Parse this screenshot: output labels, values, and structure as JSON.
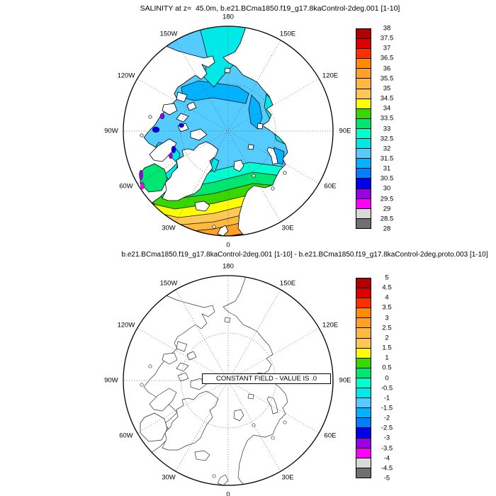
{
  "titles": {
    "top": "SALINITY at z=  45.0m, b.e21.BCma1850.f19_g17.8kaControl-2deg.001 [1-10]",
    "bottom": "b.e21.BCma1850.f19_g17.8kaControl-2deg.001 [1-10] - b.e21.BCma1850.f19_g17.8kaControl-2deg.proto.003 [1-10]"
  },
  "maps": {
    "lon_labels": [
      "180",
      "150W",
      "120W",
      "90W",
      "60W",
      "30W",
      "0",
      "30E",
      "60E",
      "90E",
      "120E",
      "150E"
    ],
    "constant_field_label": "CONSTANT FIELD - VALUE IS .0"
  },
  "colorbars": {
    "palette_top_to_bottom": [
      "#B00000",
      "#DC0000",
      "#FF3000",
      "#FF8C00",
      "#FFA028",
      "#FFB93C",
      "#FFC855",
      "#FFFF00",
      "#38D700",
      "#00E673",
      "#00FFD0",
      "#00E8E8",
      "#55CCFF",
      "#00B2FF",
      "#0080FF",
      "#0000E6",
      "#9900E6",
      "#FF00FF",
      "#D9D9D9",
      "#707070"
    ],
    "top_ticks": [
      "38",
      "37.5",
      "37",
      "36.5",
      "36",
      "35.5",
      "35",
      "34.5",
      "34",
      "33.5",
      "33",
      "32.5",
      "32",
      "31.5",
      "31",
      "30.5",
      "30",
      "29.5",
      "29",
      "28.5",
      "28"
    ],
    "bottom_ticks": [
      "5",
      "4.5",
      "4",
      "3.5",
      "3",
      "2.5",
      "2",
      "1.5",
      "1",
      "0.5",
      "0",
      "-0.5",
      "-1",
      "-1.5",
      "-2",
      "-2.5",
      "-3",
      "-3.5",
      "-4",
      "-4.5",
      "-5"
    ]
  },
  "chart_data": [
    {
      "type": "heatmap",
      "subtype": "filled-contour polar stereographic map",
      "title": "SALINITY at z=  45.0m, b.e21.BCma1850.f19_g17.8kaControl-2deg.001 [1-10]",
      "variable": "SALINITY",
      "depth": "45.0m",
      "projection": "north polar stereographic",
      "lon_gridlines_deg": [
        0,
        30,
        60,
        90,
        120,
        150,
        180,
        210,
        240,
        270,
        300,
        330
      ],
      "contour_levels": [
        28,
        28.5,
        29,
        29.5,
        30,
        30.5,
        31,
        31.5,
        32,
        32.5,
        33,
        33.5,
        34,
        34.5,
        35,
        35.5,
        36,
        36.5,
        37,
        37.5,
        38
      ],
      "colorbar_colors_low_to_high": [
        "#707070",
        "#D9D9D9",
        "#FF00FF",
        "#9900E6",
        "#0000E6",
        "#0080FF",
        "#00B2FF",
        "#55CCFF",
        "#00E8E8",
        "#00FFD0",
        "#00E673",
        "#38D700",
        "#FFFF00",
        "#FFC855",
        "#FFB93C",
        "#FFA028",
        "#FF8C00",
        "#FF3000",
        "#DC0000",
        "#B00000"
      ],
      "approx_region_values": {
        "central_arctic_basin": "31.5-32",
        "beaufort_and_east_siberian_lobes": "31-31.5",
        "chukchi_bering_and_shelf_seas": "32-32.5",
        "baffin_bay": "32-32.5 with local 29-30.5 minima",
        "canadian_archipelago_straits": "29-30.5",
        "hudson_bay": "33-33.5",
        "nordic_and_barents_seas": "33-34.5",
        "north_atlantic_rim": "35-36.5"
      },
      "legend_position": "right vertical labelbar"
    },
    {
      "type": "heatmap",
      "subtype": "contour polar stereographic map (difference)",
      "title": "b.e21.BCma1850.f19_g17.8kaControl-2deg.001 [1-10] - b.e21.BCma1850.f19_g17.8kaControl-2deg.proto.003 [1-10]",
      "projection": "north polar stereographic",
      "lon_gridlines_deg": [
        0,
        30,
        60,
        90,
        120,
        150,
        180,
        210,
        240,
        270,
        300,
        330
      ],
      "contour_levels": [
        -5,
        -4.5,
        -4,
        -3.5,
        -3,
        -2.5,
        -2,
        -1.5,
        -1,
        -0.5,
        0,
        0.5,
        1,
        1.5,
        2,
        2.5,
        3,
        3.5,
        4,
        4.5,
        5
      ],
      "field": "constant zero everywhere",
      "annotation": "CONSTANT FIELD - VALUE IS .0",
      "legend_position": "right vertical labelbar"
    }
  ]
}
